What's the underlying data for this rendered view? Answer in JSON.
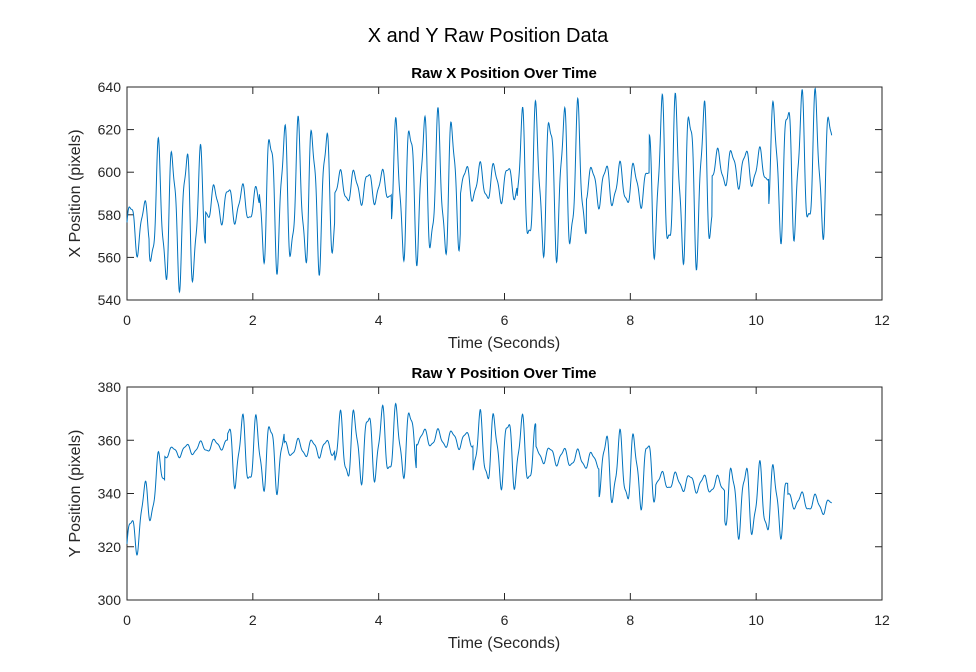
{
  "figure": {
    "title": "X and Y Raw Position Data"
  },
  "chart_data": [
    {
      "type": "line",
      "title": "Raw X Position Over Time",
      "xlabel": "Time (Seconds)",
      "ylabel": "X Position (pixels)",
      "xlim": [
        0,
        12
      ],
      "ylim": [
        540,
        640
      ],
      "xticks": [
        0,
        2,
        4,
        6,
        8,
        10,
        12
      ],
      "yticks": [
        540,
        560,
        580,
        600,
        620,
        640
      ],
      "grid": false,
      "color": "#0072bd",
      "duration": 11.2,
      "oscillation_frequency_hz": 4.5,
      "segments": [
        {
          "t0": 0.0,
          "t1": 0.35,
          "center": 575,
          "amplitude": 12
        },
        {
          "t0": 0.35,
          "t1": 1.25,
          "center": 580,
          "amplitude": 29
        },
        {
          "t0": 1.25,
          "t1": 2.1,
          "center": 585,
          "amplitude": 8
        },
        {
          "t0": 2.1,
          "t1": 3.3,
          "center": 589,
          "amplitude": 30
        },
        {
          "t0": 3.3,
          "t1": 4.2,
          "center": 593,
          "amplitude": 7
        },
        {
          "t0": 4.2,
          "t1": 5.3,
          "center": 593,
          "amplitude": 30
        },
        {
          "t0": 5.3,
          "t1": 6.2,
          "center": 595,
          "amplitude": 8
        },
        {
          "t0": 6.2,
          "t1": 7.3,
          "center": 596,
          "amplitude": 31
        },
        {
          "t0": 7.3,
          "t1": 8.3,
          "center": 594,
          "amplitude": 9
        },
        {
          "t0": 8.3,
          "t1": 9.3,
          "center": 596,
          "amplitude": 34
        },
        {
          "t0": 9.3,
          "t1": 10.2,
          "center": 602,
          "amplitude": 8
        },
        {
          "t0": 10.2,
          "t1": 11.2,
          "center": 603,
          "amplitude": 30
        }
      ]
    },
    {
      "type": "line",
      "title": "Raw Y Position Over Time",
      "xlabel": "Time (Seconds)",
      "ylabel": "Y Position (pixels)",
      "xlim": [
        0,
        12
      ],
      "ylim": [
        300,
        380
      ],
      "xticks": [
        0,
        2,
        4,
        6,
        8,
        10,
        12
      ],
      "yticks": [
        300,
        320,
        340,
        360,
        380
      ],
      "grid": false,
      "color": "#0072bd",
      "duration": 11.2,
      "oscillation_frequency_hz": 4.5,
      "segments": [
        {
          "t0": 0.0,
          "t1": 0.6,
          "center_start": 320,
          "center_end": 350,
          "amplitude": 9
        },
        {
          "t0": 0.6,
          "t1": 1.6,
          "center_start": 355,
          "center_end": 359,
          "amplitude": 2
        },
        {
          "t0": 1.6,
          "t1": 2.5,
          "center_start": 356,
          "center_end": 354,
          "amplitude": 12
        },
        {
          "t0": 2.5,
          "t1": 3.3,
          "center_start": 357,
          "center_end": 357,
          "amplitude": 3
        },
        {
          "t0": 3.3,
          "t1": 4.6,
          "center_start": 357,
          "center_end": 360,
          "amplitude": 12
        },
        {
          "t0": 4.6,
          "t1": 5.5,
          "center_start": 361,
          "center_end": 360,
          "amplitude": 3
        },
        {
          "t0": 5.5,
          "t1": 6.5,
          "center_start": 357,
          "center_end": 355,
          "amplitude": 12
        },
        {
          "t0": 6.5,
          "t1": 7.5,
          "center_start": 355,
          "center_end": 352,
          "amplitude": 3
        },
        {
          "t0": 7.5,
          "t1": 8.4,
          "center_start": 350,
          "center_end": 348,
          "amplitude": 12
        },
        {
          "t0": 8.4,
          "t1": 9.5,
          "center_start": 345,
          "center_end": 343,
          "amplitude": 3
        },
        {
          "t0": 9.5,
          "t1": 10.5,
          "center_start": 338,
          "center_end": 337,
          "amplitude": 12
        },
        {
          "t0": 10.5,
          "t1": 11.2,
          "center_start": 338,
          "center_end": 335,
          "amplitude": 3
        }
      ]
    }
  ]
}
